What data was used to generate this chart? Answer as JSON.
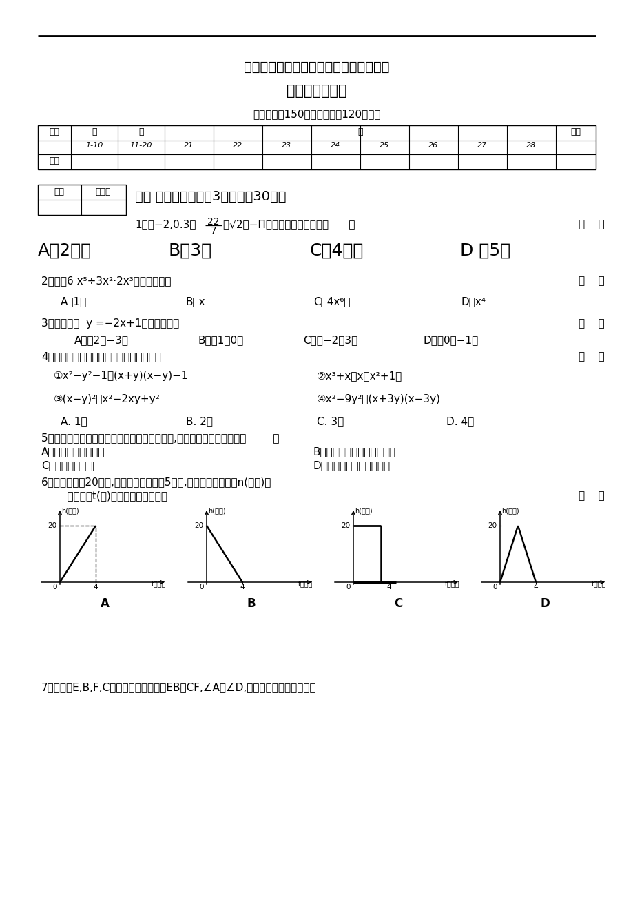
{
  "bg_color": "#ffffff",
  "title1": "新人教版八年级数学上册数学期末测试卷",
  "title2": "八年级数学试卷",
  "subtitle": "（试卷满分150分，考试时间120分钟）",
  "section1_title": "一、 选择题（每小题3分，共计30分）",
  "q1_pre": "1、数−2,0.3，",
  "q1_frac_num": "22",
  "q1_frac_den": "7",
  "q1_post": "，√2，−Π中，无理数的个数是（      ）",
  "q1_opts": [
    "A、2个；",
    "B、3个",
    "C、4个；",
    "D 、5个"
  ],
  "q2": "2、计算6 x⁵÷3x²·2x³的正确结果是",
  "q2_paren": "（    ）",
  "q2_opts": [
    "A、1；",
    "B、x",
    "C、4x⁶；",
    "D、x⁴"
  ],
  "q3": "3、一次函数  y =−2x+1的图象经过点",
  "q3_paren": "（    ）",
  "q3_opts": [
    "A．（2，−3）",
    "B．（1，0）",
    "C．（−2，3）",
    "D．（0，−1）"
  ],
  "q4": "4、下列从左到右的变形中是因式分解的有",
  "q4_paren": "（    ）",
  "q4_item1": "①x²−y²−1＝(x+y)(x−y)−1",
  "q4_item2": "②x³+x＝x（x²+1）",
  "q4_item3": "③(x−y)²＝x²−2xy+y²",
  "q4_item4": "④x²−9y²＝(x+3y)(x−3y)",
  "q4_opts": [
    "A. 1个",
    "B. 2个",
    "C. 3个",
    "D. 4个"
  ],
  "q5": "5、三角形内有一点到三角形三顶点的距离相等,则这点一定是三角形的（        ）",
  "q5_optA": "A、三条中线的交点；",
  "q5_optB": "B、三边垂直平分线的交点；",
  "q5_optC": "C、三条高的交战；",
  "q5_optD": "D、三条角平分线的交点；",
  "q6_line1": "6、一支蜡烛长20厘米,点燃后每小时燃烧5厘米,燃烧时剩下的高度n(厘米)与",
  "q6_line2": "    燃烧时间t(时)的函数关系的图象是",
  "q6_paren": "（    ）",
  "q7": "7、如图，E,B,F,C四点在一条直线上，EB＝CF,∠A＝∠D,再添一个条件仍不能证明"
}
